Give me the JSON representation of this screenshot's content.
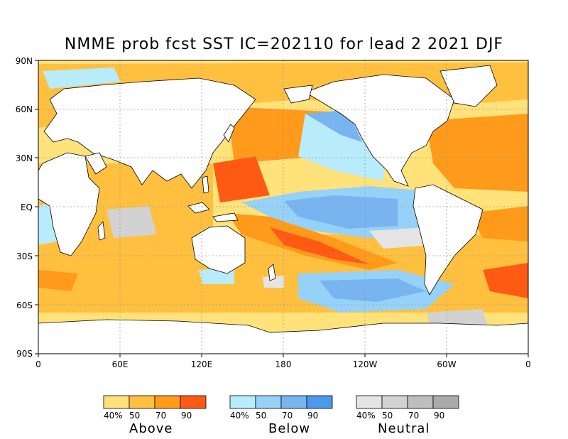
{
  "title": "NMME prob fcst SST IC=202110 for lead 2 2021 DJF",
  "axes": {
    "y_ticks": [
      "90N",
      "60N",
      "30N",
      "EQ",
      "30S",
      "60S",
      "90S"
    ],
    "x_ticks": [
      "0",
      "60E",
      "120E",
      "180",
      "120W",
      "60W",
      "0"
    ]
  },
  "legend": {
    "groups": [
      {
        "name": "Above",
        "levels": [
          "40%",
          "50",
          "70",
          "90"
        ],
        "colors": [
          "#ffe27a",
          "#ffc040",
          "#ff9a1a",
          "#ff5a14"
        ]
      },
      {
        "name": "Below",
        "levels": [
          "40%",
          "50",
          "70",
          "90"
        ],
        "colors": [
          "#b8ecfa",
          "#96d2f8",
          "#78b4f0",
          "#4c98ea"
        ]
      },
      {
        "name": "Neutral",
        "levels": [
          "40%",
          "50",
          "70",
          "90"
        ],
        "colors": [
          "#e4e4e4",
          "#d2d2d2",
          "#bebebe",
          "#aaaaaa"
        ]
      }
    ]
  },
  "colors": {
    "land": "#ffffff",
    "coast": "#000000",
    "grid": "#9a9a9a"
  }
}
